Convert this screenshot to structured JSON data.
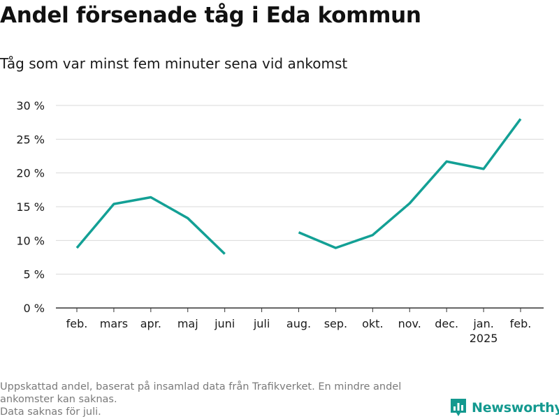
{
  "title": "Andel försenade tåg i Eda kommun",
  "subtitle": "Tåg som var minst fem minuter sena vid ankomst",
  "footer": {
    "line1": "Uppskattad andel, baserat på insamlad data från Trafikverket. En mindre andel ankomster kan saknas.",
    "line2": "Data saknas för juli."
  },
  "brand": {
    "name": "Newsworthy",
    "logo_icon": "bar-chart-logo-icon"
  },
  "colors": {
    "line": "#13a095",
    "grid": "#d9d9d9",
    "axis": "#333333",
    "text": "#1a1a1a",
    "footer": "#7a7a7a",
    "brand": "#13998f"
  },
  "chart_data": {
    "type": "line",
    "categories": [
      "feb.",
      "mars",
      "apr.",
      "maj",
      "juni",
      "juli",
      "aug.",
      "sep.",
      "okt.",
      "nov.",
      "dec.",
      "jan.",
      "feb."
    ],
    "category_sublabels": [
      "",
      "",
      "",
      "",
      "",
      "",
      "",
      "",
      "",
      "",
      "",
      "2025",
      ""
    ],
    "series": [
      {
        "values": [
          8.9,
          15.4,
          16.4,
          13.3,
          8.0,
          null,
          11.2,
          8.9,
          10.8,
          15.5,
          21.7,
          20.6,
          28.0
        ]
      }
    ],
    "yticks": [
      0,
      5,
      10,
      15,
      20,
      25,
      30
    ],
    "ytick_labels": [
      "0 %",
      "5 %",
      "10 %",
      "15 %",
      "20 %",
      "25 %",
      "30 %"
    ],
    "ylim": [
      0,
      30
    ],
    "grid": true,
    "xlabel": "",
    "ylabel": ""
  }
}
